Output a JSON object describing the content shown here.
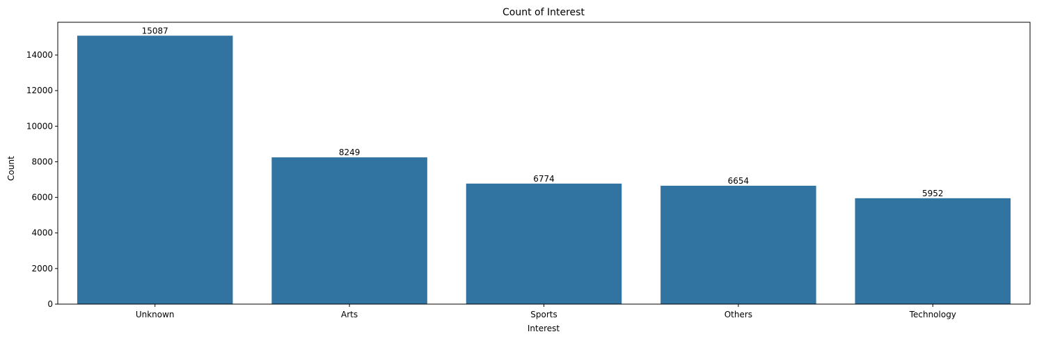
{
  "chart_data": {
    "type": "bar",
    "title": "Count of Interest",
    "xlabel": "Interest",
    "ylabel": "Count",
    "categories": [
      "Unknown",
      "Arts",
      "Sports",
      "Others",
      "Technology"
    ],
    "values": [
      15087,
      8249,
      6774,
      6654,
      5952
    ],
    "data_labels": [
      "15087",
      "8249",
      "6774",
      "6654",
      "5952"
    ],
    "ylim": [
      0,
      15841
    ],
    "yticks": [
      0,
      2000,
      4000,
      6000,
      8000,
      10000,
      12000,
      14000
    ],
    "ytick_labels": [
      "0",
      "2000",
      "4000",
      "6000",
      "8000",
      "10000",
      "12000",
      "14000"
    ],
    "bar_color": "#3274a1",
    "grid": false,
    "legend": "none"
  }
}
